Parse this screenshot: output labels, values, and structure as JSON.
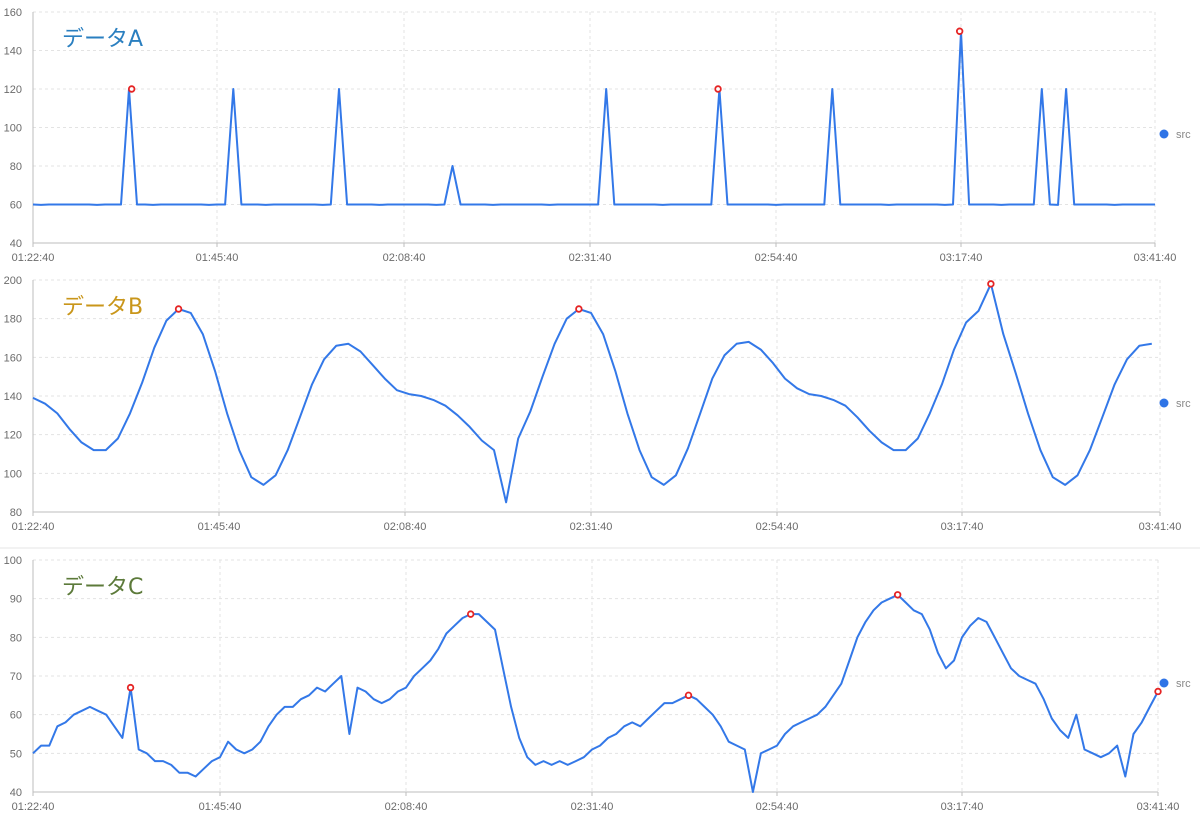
{
  "x_ticks": [
    "01:22:40",
    "01:45:40",
    "02:08:40",
    "02:31:40",
    "02:54:40",
    "03:17:40",
    "03:41:40"
  ],
  "legend_label": "src",
  "colors": {
    "line": "#3378e8",
    "legend_dot": "#2f74e6",
    "peak_marker": "#e52424",
    "grid": "#e3e3e3",
    "axis_text": "#6b6b6b"
  },
  "chart_data": [
    {
      "type": "line",
      "title": "データA",
      "title_color": "#2a7fc0",
      "ylim": [
        40,
        160
      ],
      "yticks": [
        40,
        60,
        80,
        100,
        120,
        140,
        160
      ],
      "series": [
        {
          "name": "src",
          "values": [
            60,
            60,
            59.8,
            60,
            60,
            59.9,
            60,
            60,
            60,
            60,
            60,
            60,
            60,
            60,
            60,
            60,
            60,
            60,
            60,
            59.9,
            60,
            60,
            60,
            60,
            60,
            60,
            60,
            60,
            60,
            60,
            60,
            60,
            60,
            60,
            60,
            60,
            60,
            60,
            60,
            59.9,
            60,
            60,
            60,
            60,
            120,
            60,
            60,
            60,
            60,
            60,
            60,
            60,
            60,
            60,
            60,
            60,
            60,
            60,
            60,
            60,
            60,
            60,
            60,
            60,
            60,
            59.9,
            60,
            60,
            60,
            60,
            60,
            60,
            60,
            60,
            60,
            60,
            60,
            60,
            60,
            60,
            60,
            60,
            60,
            60,
            60,
            60,
            60,
            59.9,
            60,
            60,
            60,
            60,
            60,
            60,
            60,
            60,
            60,
            60,
            60,
            60,
            60,
            60,
            60,
            60,
            60,
            60,
            60,
            60,
            60,
            60,
            60,
            60,
            60,
            60,
            60,
            60,
            60,
            60,
            60,
            60,
            60,
            60,
            60,
            60,
            60,
            60,
            60,
            60,
            60,
            60,
            60,
            60,
            60,
            60,
            60,
            60,
            60,
            60,
            60,
            60,
            60,
            60,
            60,
            60,
            60,
            60,
            60,
            60,
            60,
            60,
            60,
            60,
            60,
            60,
            60,
            60,
            60,
            60,
            60,
            60,
            60,
            60,
            60,
            60,
            60,
            60,
            60,
            60,
            60,
            60,
            60,
            60,
            60,
            60,
            60,
            60,
            60,
            60,
            60,
            60,
            60,
            60,
            60,
            60,
            60,
            60,
            60,
            60,
            60,
            60,
            60,
            60,
            60,
            60,
            60,
            60,
            60,
            60,
            60,
            60,
            60,
            60,
            60,
            60,
            60,
            60,
            60,
            60,
            60,
            60,
            60,
            60,
            60,
            60,
            60,
            60,
            60,
            60,
            60,
            60,
            60,
            60,
            60
          ]
        }
      ],
      "spikes": [
        {
          "t": "01:35:00",
          "v": 120,
          "marker": true
        },
        {
          "t": "01:48:00",
          "v": 120,
          "marker": false
        },
        {
          "t": "02:01:00",
          "v": 120,
          "marker": false
        },
        {
          "t": "02:14:30",
          "v": 80,
          "marker": false
        },
        {
          "t": "02:33:30",
          "v": 120,
          "marker": false
        },
        {
          "t": "02:47:30",
          "v": 120,
          "marker": true
        },
        {
          "t": "03:01:30",
          "v": 120,
          "marker": false
        },
        {
          "t": "03:17:30",
          "v": 150,
          "marker": true
        },
        {
          "t": "03:27:30",
          "v": 120,
          "marker": false
        },
        {
          "t": "03:30:30",
          "v": 120,
          "marker": false
        }
      ]
    },
    {
      "type": "line",
      "title": "データB",
      "title_color": "#c9961a",
      "ylim": [
        80,
        200
      ],
      "yticks": [
        80,
        100,
        120,
        140,
        160,
        180,
        200
      ],
      "points": [
        [
          "01:22:40",
          139
        ],
        [
          "01:24:10",
          136
        ],
        [
          "01:25:40",
          131
        ],
        [
          "01:27:10",
          123
        ],
        [
          "01:28:40",
          116
        ],
        [
          "01:30:10",
          112
        ],
        [
          "01:31:40",
          112
        ],
        [
          "01:33:10",
          118
        ],
        [
          "01:34:40",
          131
        ],
        [
          "01:36:10",
          147
        ],
        [
          "01:37:40",
          165
        ],
        [
          "01:39:10",
          179
        ],
        [
          "01:40:40",
          185
        ],
        [
          "01:42:10",
          183
        ],
        [
          "01:43:40",
          172
        ],
        [
          "01:45:10",
          153
        ],
        [
          "01:46:40",
          131
        ],
        [
          "01:48:10",
          112
        ],
        [
          "01:49:40",
          98
        ],
        [
          "01:51:10",
          94
        ],
        [
          "01:52:40",
          99
        ],
        [
          "01:54:10",
          112
        ],
        [
          "01:55:40",
          129
        ],
        [
          "01:57:10",
          146
        ],
        [
          "01:58:40",
          159
        ],
        [
          "02:00:10",
          166
        ],
        [
          "02:01:40",
          167
        ],
        [
          "02:03:10",
          163
        ],
        [
          "02:04:40",
          156
        ],
        [
          "02:06:10",
          149
        ],
        [
          "02:07:40",
          143
        ],
        [
          "02:09:10",
          141
        ],
        [
          "02:10:40",
          140
        ],
        [
          "02:12:10",
          138
        ],
        [
          "02:13:40",
          135
        ],
        [
          "02:15:10",
          130
        ],
        [
          "02:16:40",
          124
        ],
        [
          "02:18:10",
          117
        ],
        [
          "02:19:40",
          112
        ],
        [
          "02:21:10",
          85
        ],
        [
          "02:22:40",
          118
        ],
        [
          "02:24:10",
          132
        ],
        [
          "02:25:40",
          150
        ],
        [
          "02:27:10",
          167
        ],
        [
          "02:28:40",
          180
        ],
        [
          "02:30:10",
          185
        ],
        [
          "02:31:40",
          183
        ],
        [
          "02:33:10",
          172
        ],
        [
          "02:34:40",
          153
        ],
        [
          "02:36:10",
          131
        ],
        [
          "02:37:40",
          112
        ],
        [
          "02:39:10",
          98
        ],
        [
          "02:40:40",
          94
        ],
        [
          "02:42:10",
          99
        ],
        [
          "02:43:40",
          113
        ],
        [
          "02:45:10",
          131
        ],
        [
          "02:46:40",
          149
        ],
        [
          "02:48:10",
          161
        ],
        [
          "02:49:40",
          167
        ],
        [
          "02:51:10",
          168
        ],
        [
          "02:52:40",
          164
        ],
        [
          "02:54:10",
          157
        ],
        [
          "02:55:40",
          149
        ],
        [
          "02:57:10",
          144
        ],
        [
          "02:58:40",
          141
        ],
        [
          "03:00:10",
          140
        ],
        [
          "03:01:40",
          138
        ],
        [
          "03:03:10",
          135
        ],
        [
          "03:04:40",
          129
        ],
        [
          "03:06:10",
          122
        ],
        [
          "03:07:40",
          116
        ],
        [
          "03:09:10",
          112
        ],
        [
          "03:10:40",
          112
        ],
        [
          "03:12:10",
          118
        ],
        [
          "03:13:40",
          131
        ],
        [
          "03:15:10",
          146
        ],
        [
          "03:16:40",
          164
        ],
        [
          "03:18:10",
          178
        ],
        [
          "03:19:40",
          184
        ],
        [
          "03:21:10",
          198
        ],
        [
          "03:22:40",
          172
        ],
        [
          "03:24:10",
          152
        ],
        [
          "03:25:40",
          131
        ],
        [
          "03:27:10",
          112
        ],
        [
          "03:28:40",
          98
        ],
        [
          "03:30:10",
          94
        ],
        [
          "03:31:40",
          99
        ],
        [
          "03:33:10",
          112
        ],
        [
          "03:34:40",
          129
        ],
        [
          "03:36:10",
          146
        ],
        [
          "03:37:40",
          159
        ],
        [
          "03:39:10",
          166
        ],
        [
          "03:40:40",
          167
        ]
      ]
    },
    {
      "type": "line",
      "title": "データC",
      "title_color": "#5c7a3a",
      "ylim": [
        40,
        100
      ],
      "yticks": [
        40,
        50,
        60,
        70,
        80,
        90,
        100
      ],
      "points": []
    }
  ]
}
